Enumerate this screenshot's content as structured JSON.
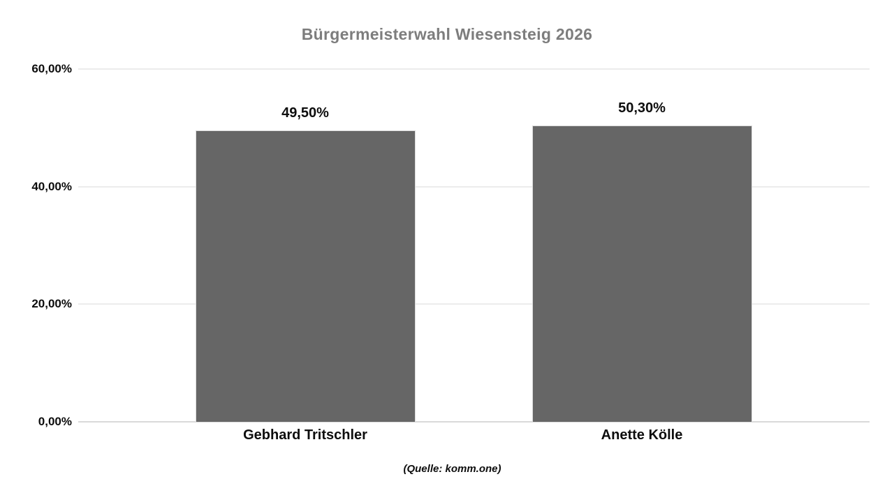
{
  "chart_data": {
    "type": "bar",
    "title": "Bürgermeisterwahl Wiesensteig 2026",
    "source_note": "(Quelle: komm.one)",
    "categories": [
      "Gebhard Tritschler",
      "Anette Kölle"
    ],
    "values": [
      49.5,
      50.3
    ],
    "value_labels": [
      "49,50%",
      "50,30%"
    ],
    "xlabel": "",
    "ylabel": "",
    "ylim": [
      0,
      60
    ],
    "yticks": [
      {
        "value": 0,
        "label": "0,00%"
      },
      {
        "value": 20,
        "label": "20,00%"
      },
      {
        "value": 40,
        "label": "40,00%"
      },
      {
        "value": 60,
        "label": "60,00%"
      }
    ],
    "grid": "horizontal",
    "legend": "none",
    "colors": {
      "bar": "#666666",
      "title": "#7d7d7d",
      "grid": "#ececec",
      "grid_baseline": "#d9d9d9",
      "text": "#0d0d0d",
      "background": "#ffffff"
    }
  }
}
